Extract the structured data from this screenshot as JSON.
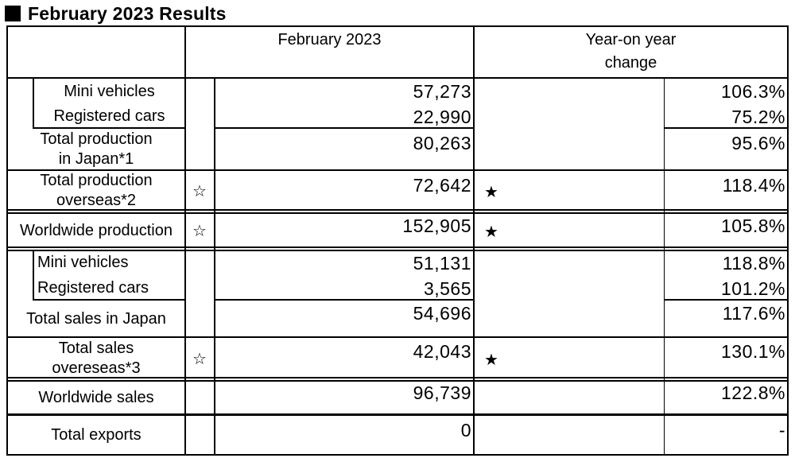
{
  "title": "February 2023 Results",
  "header": {
    "period": "February 2023",
    "yoy_line1": "Year-on year",
    "yoy_line2": "change"
  },
  "rows": {
    "mini_production": {
      "label": "Mini vehicles",
      "value": "57,273",
      "yoy": "106.3%"
    },
    "registered_production": {
      "label": "Registered cars",
      "value": "22,990",
      "yoy": "75.2%"
    },
    "total_japan_production": {
      "label_line1": "Total production",
      "label_line2": "in Japan*1",
      "value": "80,263",
      "yoy": "95.6%"
    },
    "overseas_production": {
      "label_line1": "Total production",
      "label_line2": "overseas*2",
      "marker": "☆",
      "yoy_marker": "★",
      "value": "72,642",
      "yoy": "118.4%"
    },
    "worldwide_production": {
      "label": "Worldwide production",
      "marker": "☆",
      "yoy_marker": "★",
      "value": "152,905",
      "yoy": "105.8%"
    },
    "mini_sales": {
      "label": "Mini vehicles",
      "value": "51,131",
      "yoy": "118.8%"
    },
    "registered_sales": {
      "label": "Registered cars",
      "value": "3,565",
      "yoy": "101.2%"
    },
    "total_japan_sales": {
      "label": "Total sales in Japan",
      "value": "54,696",
      "yoy": "117.6%"
    },
    "overseas_sales": {
      "label_line1": "Total sales",
      "label_line2": "overeseas*3",
      "marker": "☆",
      "yoy_marker": "★",
      "value": "42,043",
      "yoy": "130.1%"
    },
    "worldwide_sales": {
      "label": "Worldwide sales",
      "value": "96,739",
      "yoy": "122.8%"
    },
    "total_exports": {
      "label": "Total exports",
      "value": "0",
      "yoy": "-"
    }
  }
}
